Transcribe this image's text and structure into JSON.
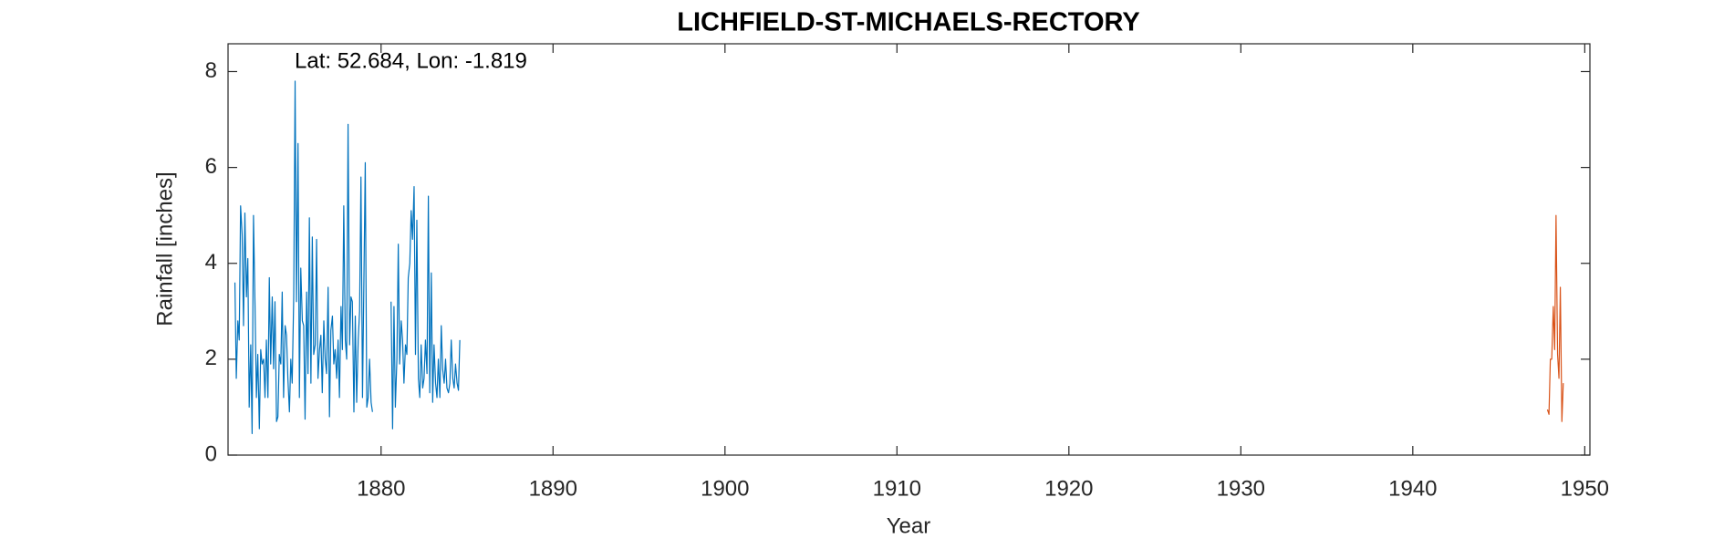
{
  "chart_data": {
    "type": "line",
    "title": "LICHFIELD-ST-MICHAELS-RECTORY",
    "annotation": "Lat: 52.684, Lon: -1.819",
    "x_label": "Year",
    "y_label": "Rainfall [inches]",
    "xlim": [
      1871.1,
      1950.3
    ],
    "xticks": [
      1880,
      1890,
      1900,
      1910,
      1920,
      1930,
      1940,
      1950
    ],
    "ylim": [
      0,
      8.58
    ],
    "yticks": [
      0,
      2,
      4,
      6,
      8
    ],
    "grid": false,
    "series": [
      {
        "color": "#0072BD",
        "x": [
          1871.5,
          1871.58,
          1871.67,
          1871.75,
          1871.83,
          1871.92,
          1872.0,
          1872.08,
          1872.17,
          1872.25,
          1872.33,
          1872.42,
          1872.5,
          1872.58,
          1872.67,
          1872.75,
          1872.83,
          1872.92,
          1873.0,
          1873.08,
          1873.17,
          1873.25,
          1873.33,
          1873.42,
          1873.5,
          1873.58,
          1873.67,
          1873.75,
          1873.83,
          1873.92,
          1874.0,
          1874.08,
          1874.17,
          1874.25,
          1874.33,
          1874.42,
          1874.5,
          1874.58,
          1874.67,
          1874.75,
          1874.83,
          1874.92,
          1875.0,
          1875.08,
          1875.17,
          1875.25,
          1875.33,
          1875.42,
          1875.5,
          1875.58,
          1875.67,
          1875.75,
          1875.83,
          1875.92,
          1876.0,
          1876.08,
          1876.17,
          1876.25,
          1876.33,
          1876.42,
          1876.5,
          1876.58,
          1876.67,
          1876.75,
          1876.83,
          1876.92,
          1877.0,
          1877.08,
          1877.17,
          1877.25,
          1877.33,
          1877.42,
          1877.5,
          1877.58,
          1877.67,
          1877.75,
          1877.83,
          1877.92,
          1878.0,
          1878.08,
          1878.17,
          1878.25,
          1878.33,
          1878.42,
          1878.5,
          1878.58,
          1878.67,
          1878.75,
          1878.83,
          1878.92,
          1879.0,
          1879.08,
          1879.17,
          1879.25,
          1879.33,
          1879.42,
          1879.5,
          1880.0,
          1880.58,
          1880.67,
          1880.75,
          1880.83,
          1880.92,
          1881.0,
          1881.08,
          1881.17,
          1881.25,
          1881.33,
          1881.42,
          1881.5,
          1881.58,
          1881.67,
          1881.75,
          1881.83,
          1881.92,
          1882.0,
          1882.08,
          1882.17,
          1882.25,
          1882.33,
          1882.42,
          1882.5,
          1882.58,
          1882.67,
          1882.75,
          1882.83,
          1882.92,
          1883.0,
          1883.08,
          1883.17,
          1883.25,
          1883.33,
          1883.42,
          1883.5,
          1883.58,
          1883.67,
          1883.75,
          1883.83,
          1883.92,
          1884.0,
          1884.08,
          1884.17,
          1884.25,
          1884.33,
          1884.42,
          1884.5,
          1884.58
        ],
        "values": [
          3.6,
          1.6,
          2.8,
          2.4,
          5.2,
          4.6,
          2.7,
          5.05,
          3.3,
          4.1,
          1.0,
          2.3,
          0.45,
          5.0,
          3.1,
          1.2,
          2.1,
          0.55,
          2.2,
          1.9,
          2.0,
          1.2,
          2.4,
          1.2,
          3.7,
          1.9,
          3.3,
          1.8,
          3.2,
          0.7,
          0.8,
          2.1,
          1.9,
          3.4,
          1.2,
          2.7,
          2.5,
          1.6,
          0.9,
          2.0,
          1.5,
          3.3,
          7.8,
          3.2,
          6.5,
          1.2,
          3.9,
          2.8,
          2.7,
          0.75,
          3.4,
          1.7,
          4.95,
          1.5,
          4.55,
          2.1,
          2.3,
          4.5,
          1.6,
          2.2,
          2.5,
          1.3,
          2.8,
          2.0,
          1.7,
          3.5,
          0.8,
          2.6,
          2.9,
          1.9,
          2.2,
          1.6,
          2.4,
          1.2,
          3.1,
          2.2,
          5.2,
          2.4,
          2.0,
          6.9,
          2.3,
          3.3,
          3.2,
          0.9,
          2.9,
          1.1,
          2.4,
          3.0,
          5.8,
          1.2,
          3.6,
          6.1,
          1.0,
          1.2,
          2.0,
          1.1,
          0.9,
          null,
          3.2,
          0.55,
          3.1,
          1.0,
          2.0,
          4.4,
          1.9,
          2.8,
          2.4,
          1.5,
          2.3,
          2.1,
          3.7,
          4.0,
          5.1,
          4.5,
          5.6,
          2.1,
          4.9,
          1.6,
          1.2,
          2.3,
          1.4,
          1.6,
          2.4,
          1.7,
          5.4,
          1.3,
          3.8,
          1.1,
          2.3,
          1.5,
          1.2,
          2.0,
          1.2,
          2.7,
          1.8,
          1.5,
          2.0,
          1.4,
          1.3,
          1.5,
          2.4,
          1.6,
          1.4,
          1.9,
          1.5,
          1.35,
          2.4
        ]
      },
      {
        "color": "#D95319",
        "x": [
          1947.83,
          1947.92,
          1948.0,
          1948.08,
          1948.17,
          1948.25,
          1948.33,
          1948.42,
          1948.5,
          1948.58,
          1948.67,
          1948.75
        ],
        "values": [
          0.95,
          0.85,
          2.0,
          2.0,
          3.1,
          2.2,
          5.0,
          2.1,
          1.6,
          3.5,
          0.7,
          1.5
        ]
      }
    ]
  }
}
